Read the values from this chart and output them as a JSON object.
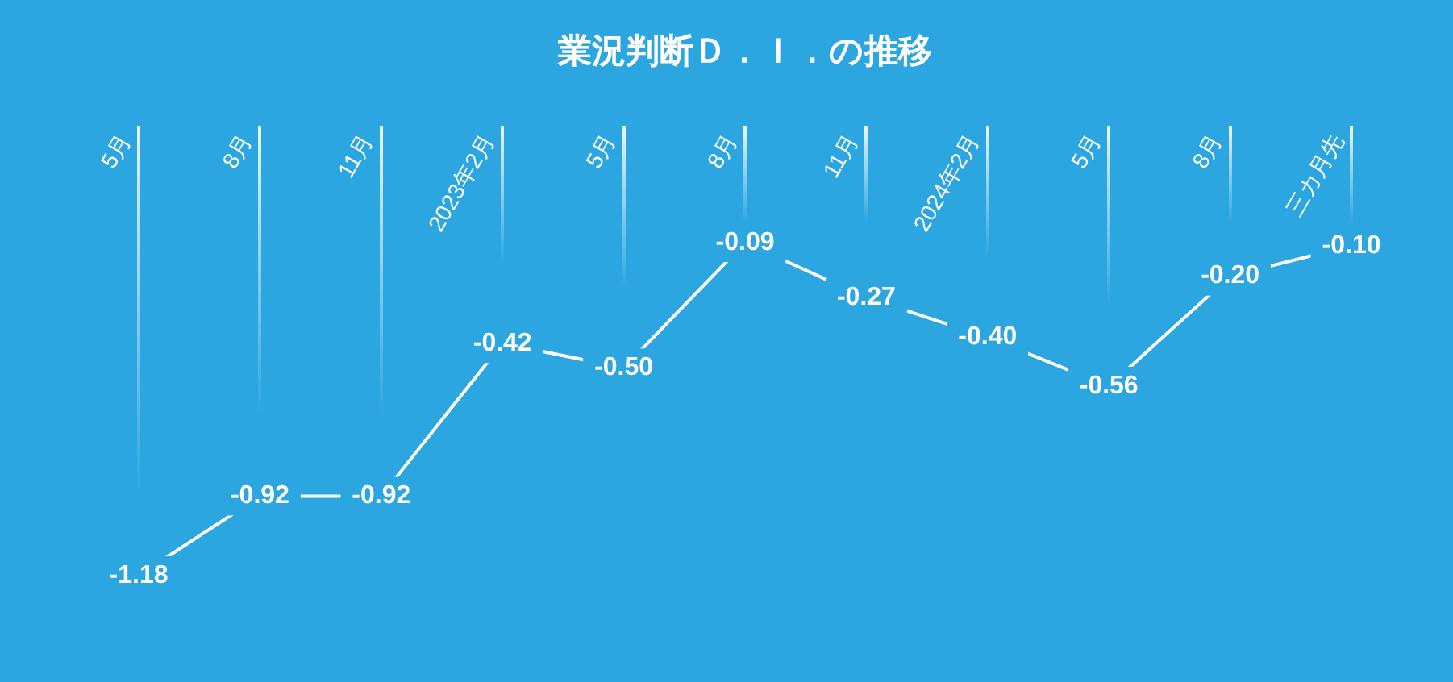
{
  "chart_data": {
    "type": "line",
    "title": "業況判断Ｄ．Ｉ．の推移",
    "categories": [
      "5月",
      "8月",
      "11月",
      "2023年2月",
      "5月",
      "8月",
      "11月",
      "2024年2月",
      "5月",
      "8月",
      "三カ月先"
    ],
    "series": [
      {
        "color": "#ffffff",
        "values": [
          -1.18,
          -0.92,
          -0.92,
          -0.42,
          -0.5,
          -0.09,
          -0.27,
          -0.4,
          -0.56,
          -0.2,
          -0.1
        ],
        "value_labels": [
          "-1.18",
          "-0.92",
          "-0.92",
          "-0.42",
          "-0.50",
          "-0.09",
          "-0.27",
          "-0.40",
          "-0.56",
          "-0.20",
          "-0.10"
        ]
      }
    ],
    "grid": "x",
    "tick_labels": "x",
    "line_style": "solid"
  }
}
